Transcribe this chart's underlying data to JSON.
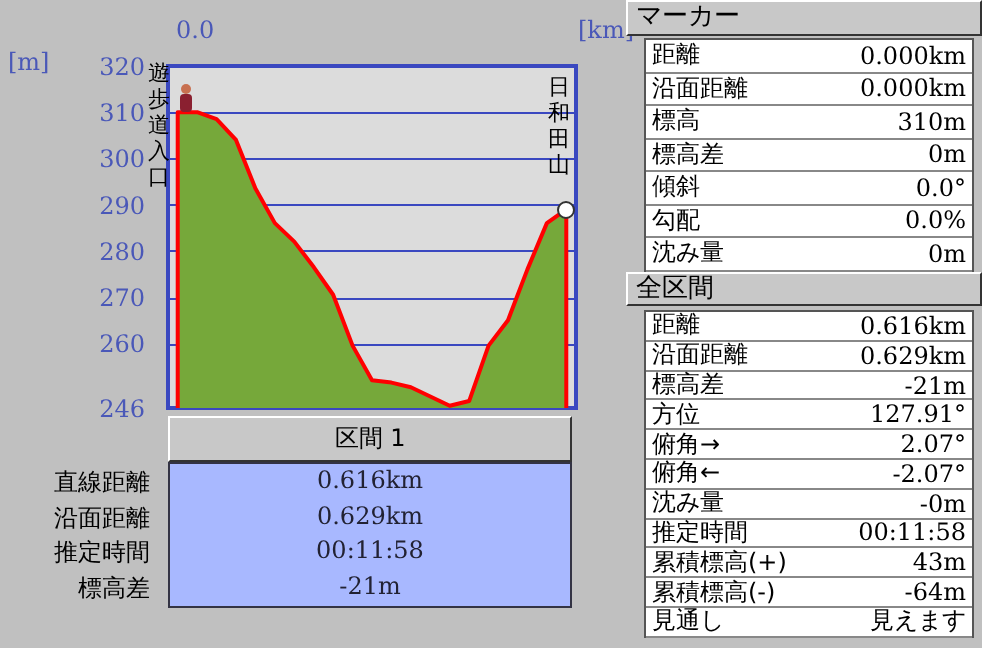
{
  "chart_data": {
    "type": "area",
    "xlabel": "[km]",
    "ylabel": "[m]",
    "categories": [
      null,
      null,
      null,
      null,
      null,
      null,
      null,
      null,
      null,
      null,
      null,
      null,
      null,
      null,
      null,
      null,
      null,
      null,
      null,
      null,
      null
    ],
    "series": [
      {
        "color": "#76a83a",
        "values": [
          310,
          310,
          308.5,
          304,
          293.5,
          286,
          282,
          276.5,
          270.5,
          259.5,
          252,
          251.5,
          250.5,
          248.5,
          246.5,
          247.5,
          259.5,
          265,
          276,
          286,
          289
        ]
      }
    ],
    "ylim": [
      246,
      320
    ],
    "yticks": [
      246,
      260,
      270,
      280,
      290,
      300,
      310,
      320
    ],
    "grid": "y",
    "annotations": [
      "0.0",
      "遊歩道入口",
      "日和田山",
      "区間 1",
      "直線距離",
      "0.616km",
      "沿面距離",
      "0.629km",
      "推定時間",
      "00:11:58",
      "標高差",
      "-21m",
      "マーカー",
      "距離",
      "0.000km",
      "沿面距離",
      "0.000km",
      "標高",
      "310m",
      "標高差",
      "0m",
      "傾斜",
      "0.0°",
      "勾配",
      "0.0%",
      "沈み量",
      "0m",
      "全区間",
      "距離",
      "0.616km",
      "沿面距離",
      "0.629km",
      "標高差",
      "-21m",
      "方位",
      "127.91°",
      "俯角→",
      "2.07°",
      "俯角←",
      "-2.07°",
      "沈み量",
      "-0m",
      "推定時間",
      "00:11:58",
      "累積標高(+)",
      "43m",
      "累積標高(-)",
      "-64m",
      "見通し",
      "見えます"
    ]
  }
}
